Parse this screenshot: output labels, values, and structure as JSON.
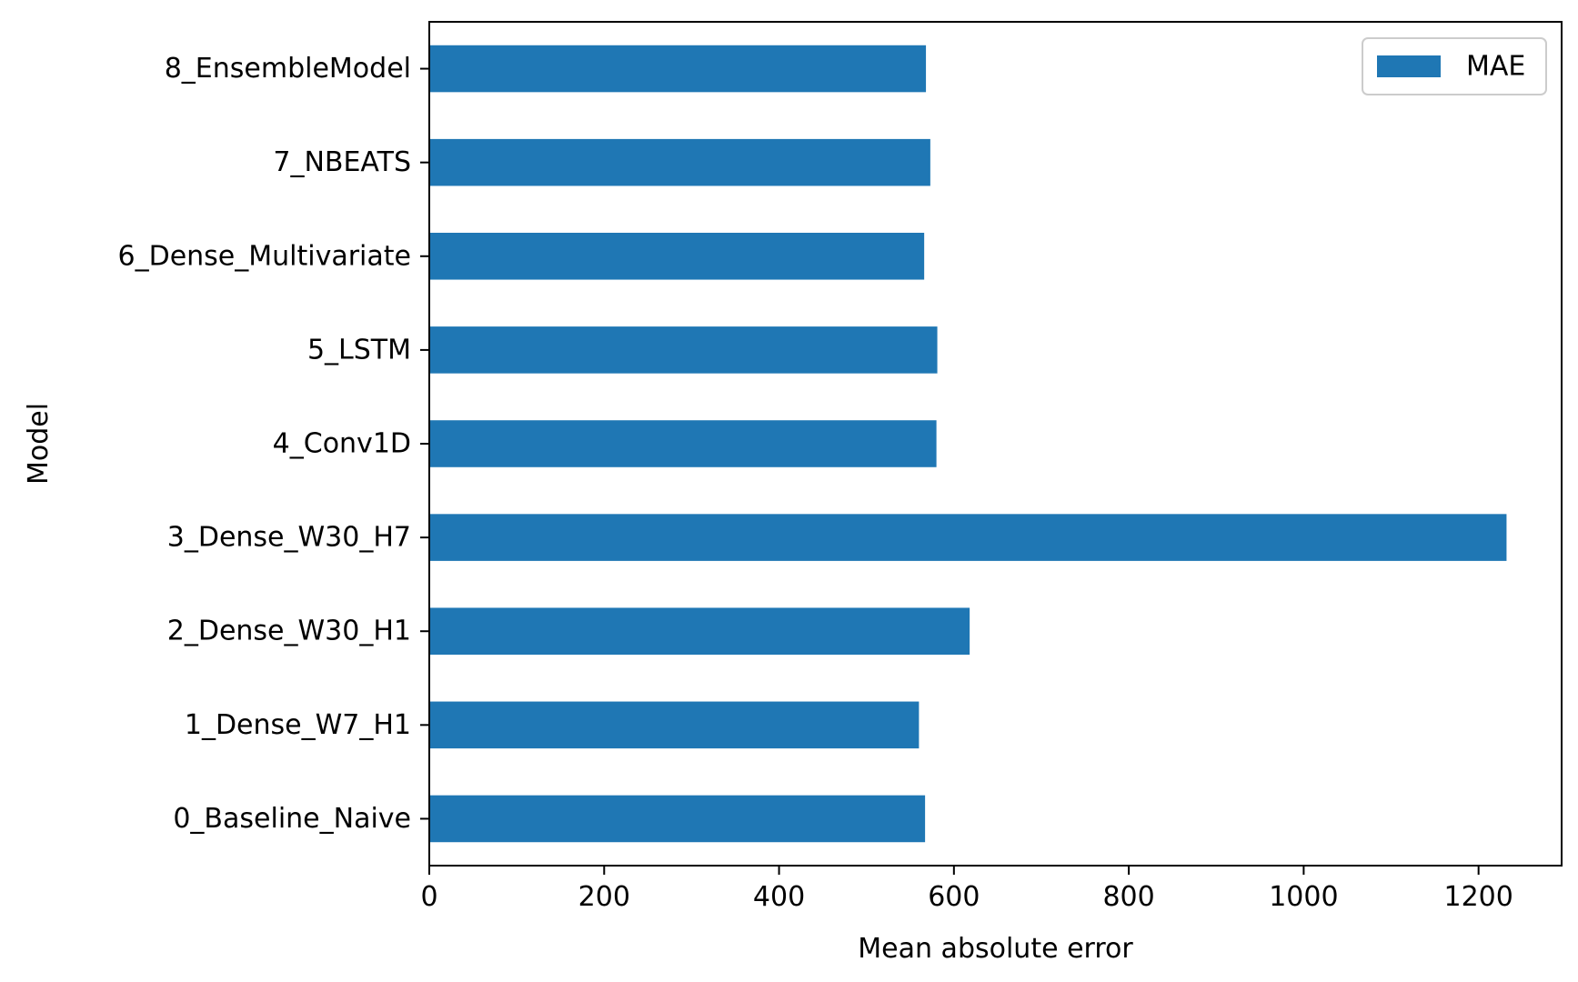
{
  "chart_data": {
    "type": "bar",
    "orientation": "horizontal",
    "categories": [
      "0_Baseline_Naive",
      "1_Dense_W7_H1",
      "2_Dense_W30_H1",
      "3_Dense_W30_H7",
      "4_Conv1D",
      "5_LSTM",
      "6_Dense_Multivariate",
      "7_NBEATS",
      "8_EnsembleModel"
    ],
    "series": [
      {
        "name": "MAE",
        "color": "#1f77b4",
        "values": [
          567,
          560,
          618,
          1232,
          580,
          581,
          566,
          573,
          568
        ]
      }
    ],
    "xlabel": "Mean absolute error",
    "ylabel": "Model",
    "xlim": [
      0,
      1295
    ],
    "xticks": [
      0,
      200,
      400,
      600,
      800,
      1000,
      1200
    ],
    "grid": false,
    "legend": {
      "position": "top-right"
    }
  }
}
